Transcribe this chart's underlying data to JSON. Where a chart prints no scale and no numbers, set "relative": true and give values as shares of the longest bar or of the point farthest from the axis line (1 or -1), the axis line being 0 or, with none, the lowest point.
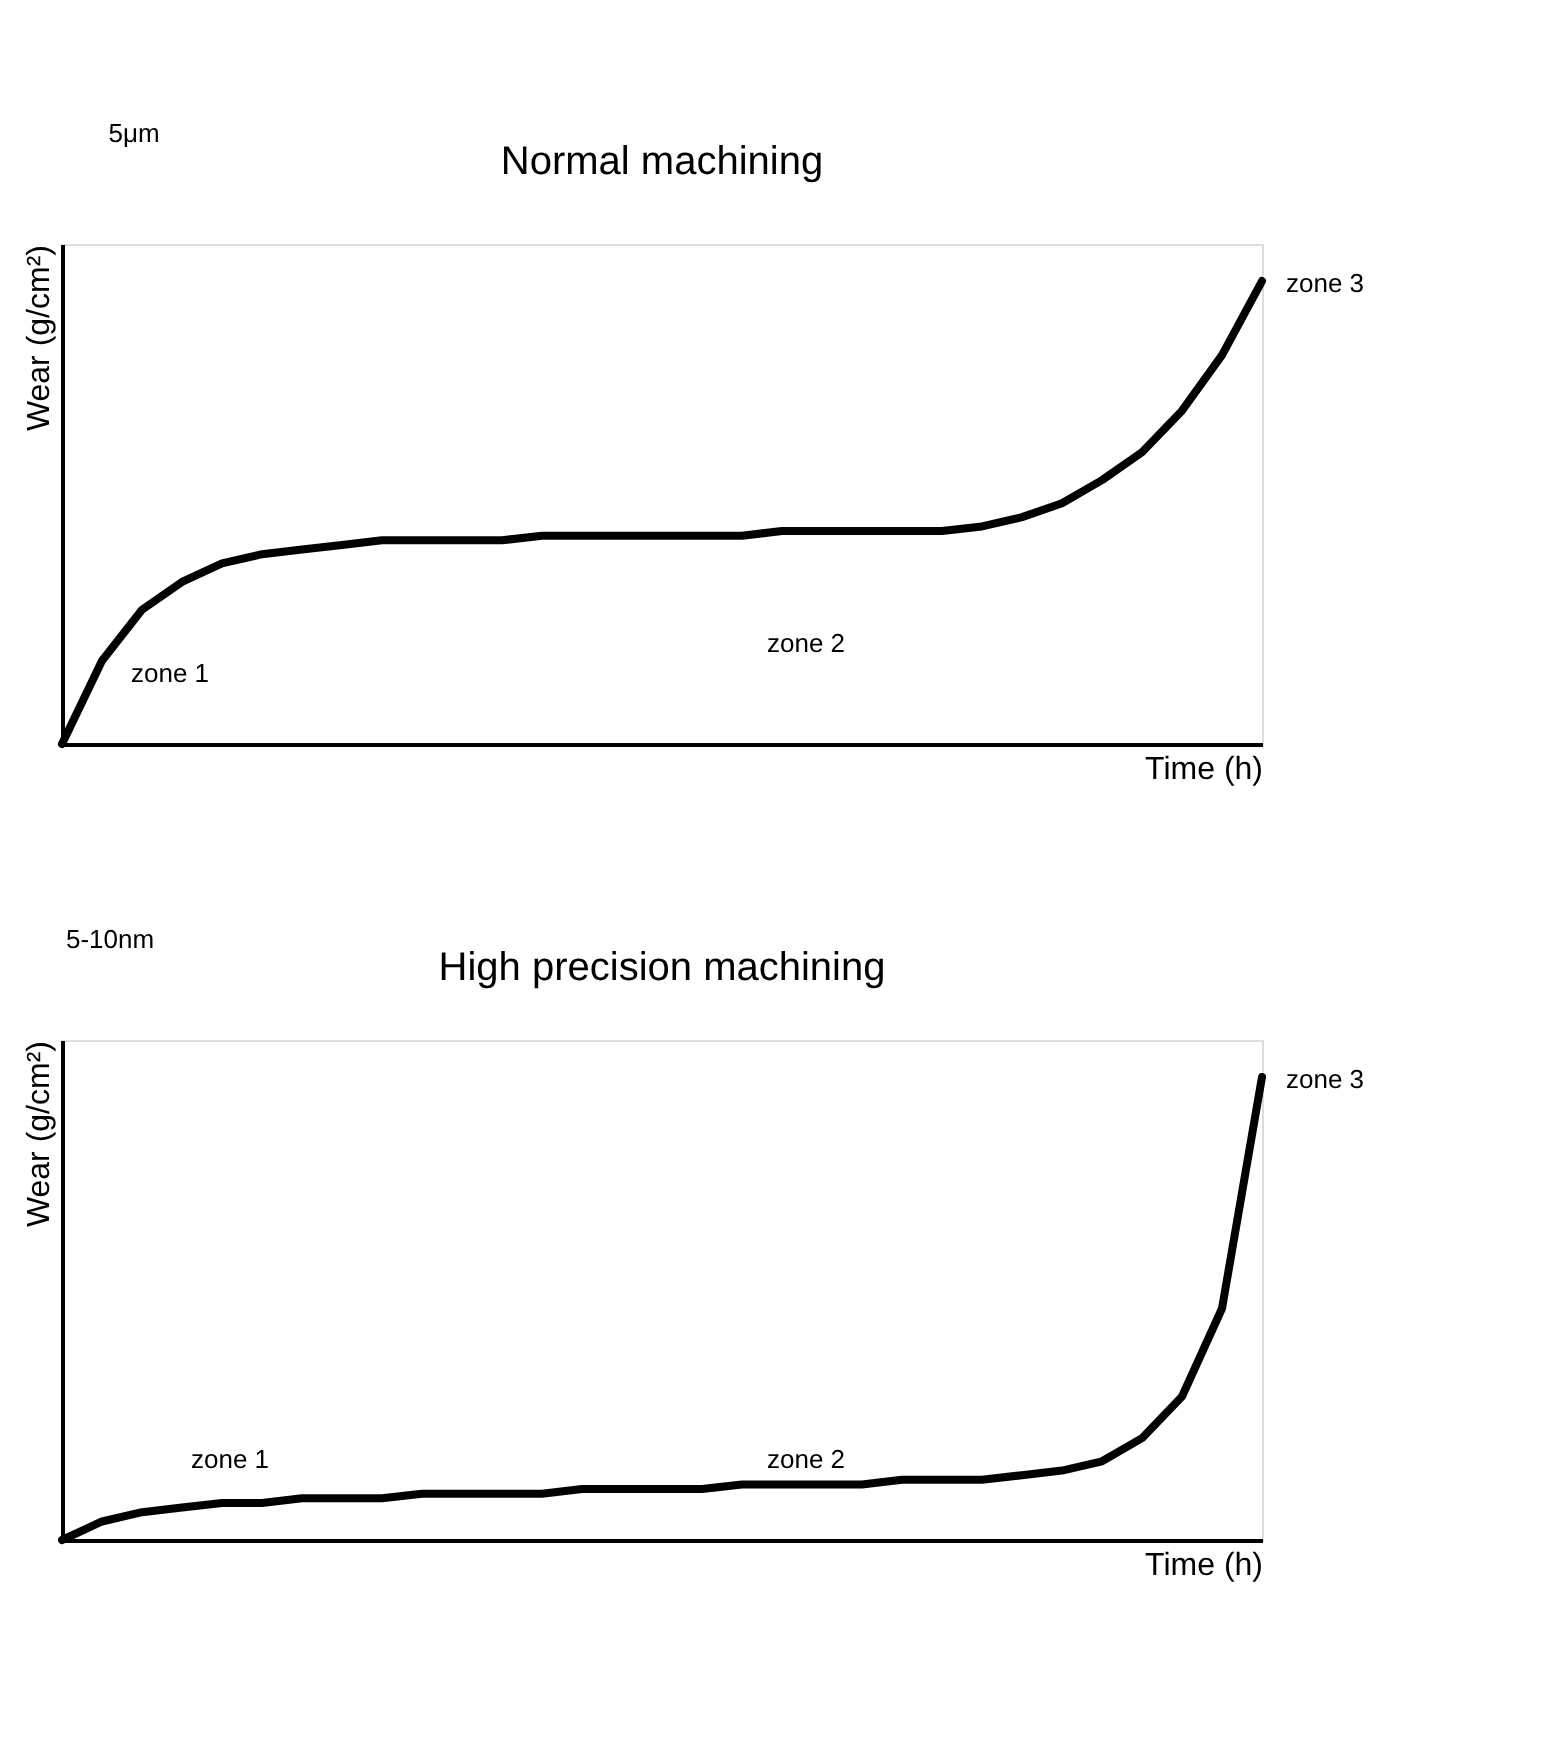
{
  "chart_data": [
    {
      "type": "line",
      "title": "Normal machining",
      "xlabel": "Time (h)",
      "ylabel": "Wear (g/cm²)",
      "relative": true,
      "tick_labels": false,
      "grid": false,
      "marker": "none",
      "line_style": "solid",
      "categories": [
        null,
        null,
        null,
        null,
        null,
        null,
        null,
        null,
        null,
        null,
        null,
        null,
        null,
        null,
        null,
        null,
        null,
        null,
        null,
        null,
        null,
        null,
        null,
        null,
        null,
        null,
        null,
        null,
        null,
        null,
        null
      ],
      "series": [
        {
          "color": "#000000",
          "values": [
            0,
            0.18,
            0.29,
            0.35,
            0.39,
            0.41,
            0.42,
            0.43,
            0.44,
            0.44,
            0.44,
            0.44,
            0.45,
            0.45,
            0.45,
            0.45,
            0.45,
            0.45,
            0.46,
            0.46,
            0.46,
            0.46,
            0.46,
            0.47,
            0.49,
            0.52,
            0.57,
            0.63,
            0.72,
            0.84,
            1
          ]
        }
      ],
      "annotations": [
        "5μm",
        "zone 1",
        "zone 2",
        "zone 3"
      ]
    },
    {
      "type": "line",
      "title": "High precision machining",
      "xlabel": "Time (h)",
      "ylabel": "Wear (g/cm²)",
      "relative": true,
      "tick_labels": false,
      "grid": false,
      "marker": "none",
      "line_style": "solid",
      "categories": [
        null,
        null,
        null,
        null,
        null,
        null,
        null,
        null,
        null,
        null,
        null,
        null,
        null,
        null,
        null,
        null,
        null,
        null,
        null,
        null,
        null,
        null,
        null,
        null,
        null,
        null,
        null,
        null,
        null,
        null,
        null
      ],
      "series": [
        {
          "color": "#000000",
          "values": [
            0,
            0.04,
            0.06,
            0.07,
            0.08,
            0.08,
            0.09,
            0.09,
            0.09,
            0.1,
            0.1,
            0.1,
            0.1,
            0.11,
            0.11,
            0.11,
            0.11,
            0.12,
            0.12,
            0.12,
            0.12,
            0.13,
            0.13,
            0.13,
            0.14,
            0.15,
            0.17,
            0.22,
            0.31,
            0.5,
            1
          ]
        }
      ],
      "annotations": [
        "5-10nm",
        "zone 1",
        "zone 2",
        "zone 3"
      ]
    }
  ]
}
